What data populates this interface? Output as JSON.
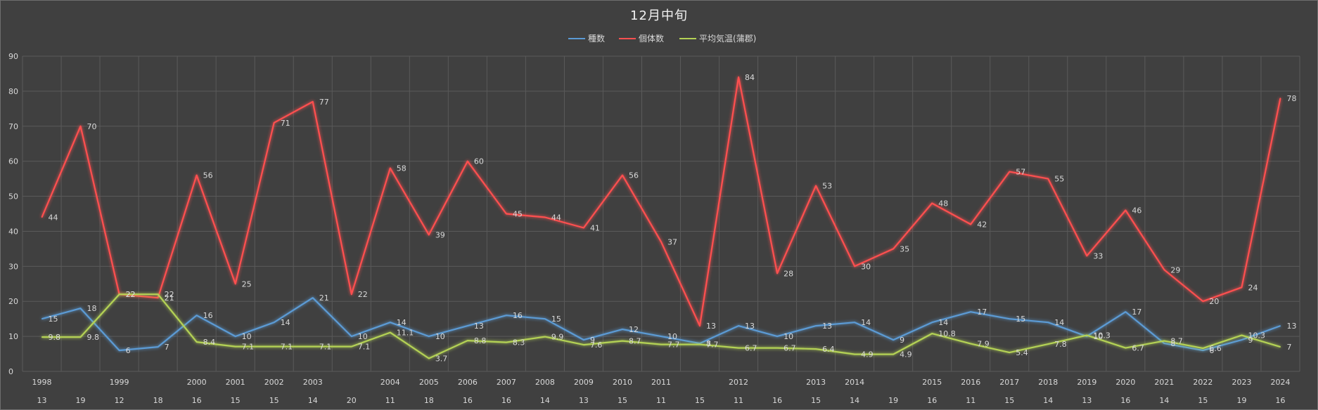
{
  "chart_data": {
    "type": "line",
    "title": "12月中旬",
    "ylim": [
      0,
      90
    ],
    "ystep": 10,
    "ytick_labels": [
      "0",
      "10",
      "20",
      "30",
      "40",
      "50",
      "60",
      "70",
      "80",
      "90"
    ],
    "categories": [
      "1998",
      "",
      "1999",
      "",
      "2000",
      "2001",
      "2002",
      "2003",
      "",
      "2004",
      "2005",
      "2006",
      "2007",
      "2008",
      "2009",
      "2010",
      "2011",
      "",
      "2012",
      "",
      "2013",
      "2014",
      "",
      "2015",
      "2016",
      "2017",
      "2018",
      "2019",
      "2020",
      "2021",
      "2022",
      "2023",
      "2024"
    ],
    "category_row2": [
      "13",
      "19",
      "12",
      "18",
      "16",
      "15",
      "15",
      "14",
      "20",
      "11",
      "18",
      "16",
      "16",
      "14",
      "13",
      "15",
      "11",
      "15",
      "11",
      "16",
      "15",
      "14",
      "19",
      "16",
      "11",
      "15",
      "14",
      "13",
      "16",
      "14",
      "15",
      "19",
      "16"
    ],
    "legend_position": "top",
    "grid": true,
    "series": [
      {
        "name": "種数",
        "color": "#5b9bd5",
        "values": [
          15,
          18,
          6,
          7,
          16,
          10,
          14,
          21,
          10,
          14,
          10,
          13,
          16,
          15,
          9,
          12,
          10,
          8,
          13,
          10,
          13,
          14,
          9,
          14,
          17,
          15,
          14,
          10,
          17,
          8,
          6,
          9,
          13
        ],
        "labels": [
          "15",
          "18",
          "6",
          "7",
          "16",
          "10",
          "14",
          "21",
          "10",
          "14",
          "10",
          "13",
          "16",
          "15",
          "9",
          "12",
          "10",
          "8",
          "13",
          "10",
          "13",
          "14",
          "9",
          "14",
          "17",
          "15",
          "14",
          "10",
          "17",
          "8",
          "6",
          "9",
          "13"
        ]
      },
      {
        "name": "個体数",
        "color": "#ff5050",
        "values": [
          44,
          70,
          22,
          21,
          56,
          25,
          71,
          77,
          22,
          58,
          39,
          60,
          45,
          44,
          41,
          56,
          37,
          13,
          84,
          28,
          53,
          30,
          35,
          48,
          42,
          57,
          55,
          33,
          46,
          29,
          20,
          24,
          78
        ],
        "labels": [
          "44",
          "70",
          "22",
          "21",
          "56",
          "25",
          "71",
          "77",
          "22",
          "58",
          "39",
          "60",
          "45",
          "44",
          "41",
          "56",
          "37",
          "13",
          "84",
          "28",
          "53",
          "30",
          "35",
          "48",
          "42",
          "57",
          "55",
          "33",
          "46",
          "29",
          "20",
          "24",
          "78"
        ]
      },
      {
        "name": "平均気温(蒲郡)",
        "color": "#b4d255",
        "values": [
          9.8,
          9.8,
          22,
          22,
          8.4,
          7.1,
          7.1,
          7.1,
          7.1,
          11.1,
          3.7,
          8.8,
          8.3,
          9.9,
          7.6,
          8.7,
          7.7,
          7.7,
          6.7,
          6.7,
          6.4,
          4.9,
          4.9,
          10.8,
          7.9,
          5.4,
          7.8,
          10.3,
          6.7,
          8.7,
          6.6,
          10.3,
          7
        ],
        "labels": [
          "9.8",
          "9.8",
          "22",
          "22",
          "8.4",
          "7.1",
          "7.1",
          "7.1",
          "7.1",
          "11.1",
          "3.7",
          "8.8",
          "8.3",
          "9.9",
          "7.6",
          "8.7",
          "7.7",
          "7.7",
          "6.7",
          "6.7",
          "6.4",
          "4.9",
          "4.9",
          "10.8",
          "7.9",
          "5.4",
          "7.8",
          "10.3",
          "6.7",
          "8.7",
          "6.6",
          "10.3",
          "7"
        ]
      }
    ]
  }
}
